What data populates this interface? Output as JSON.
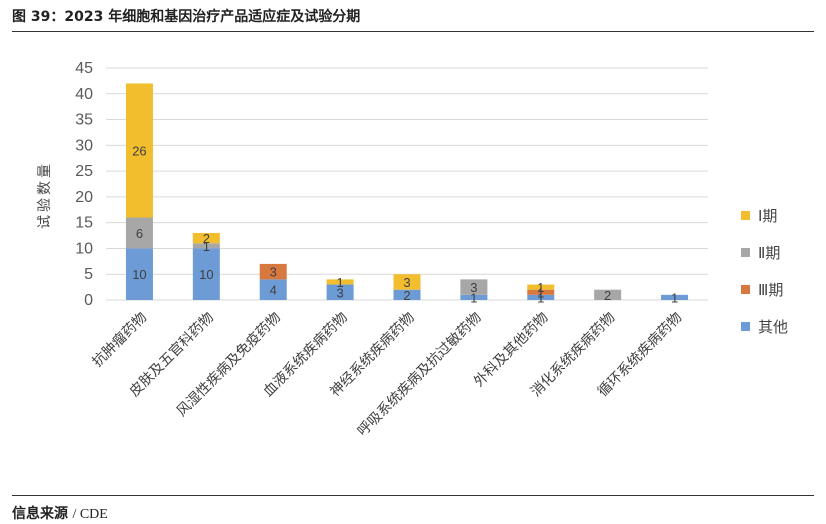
{
  "figure": {
    "title": "图 39：2023 年细胞和基因治疗产品适应症及试验分期",
    "source_label": "信息来源",
    "source_value": "/ CDE"
  },
  "colors": {
    "phase1": "#F2BE2E",
    "phase2": "#A7A7A7",
    "phase3": "#D7783F",
    "other": "#6C9BD6",
    "grid": "#D9D9D9",
    "axis_text": "#595959"
  },
  "chart_data": {
    "type": "bar",
    "stacked": true,
    "title": "",
    "xlabel": "",
    "ylabel": "试验数量",
    "ylim": [
      0,
      45
    ],
    "yticks": [
      0,
      5,
      10,
      15,
      20,
      25,
      30,
      35,
      40,
      45
    ],
    "grid": true,
    "legend_position": "right",
    "categories": [
      "抗肿瘤药物",
      "皮肤及五官科药物",
      "风湿性疾病及免疫药物",
      "血液系统疾病药物",
      "神经系统疾病药物",
      "呼吸系统疾病及抗过敏药物",
      "外科及其他药物",
      "消化系统疾病药物",
      "循环系统疾病药物"
    ],
    "series": [
      {
        "name": "其他",
        "color_key": "other",
        "values": [
          10,
          10,
          4,
          3,
          2,
          1,
          1,
          0,
          1
        ]
      },
      {
        "name": "Ⅲ期",
        "color_key": "phase3",
        "values": [
          0,
          0,
          3,
          0,
          0,
          0,
          1,
          0,
          0
        ]
      },
      {
        "name": "Ⅱ期",
        "color_key": "phase2",
        "values": [
          6,
          1,
          0,
          0,
          0,
          3,
          0,
          2,
          0
        ]
      },
      {
        "name": "Ⅰ期",
        "color_key": "phase1",
        "values": [
          26,
          2,
          0,
          1,
          3,
          0,
          1,
          0,
          0
        ]
      }
    ],
    "legend_order": [
      "Ⅰ期",
      "Ⅱ期",
      "Ⅲ期",
      "其他"
    ]
  }
}
